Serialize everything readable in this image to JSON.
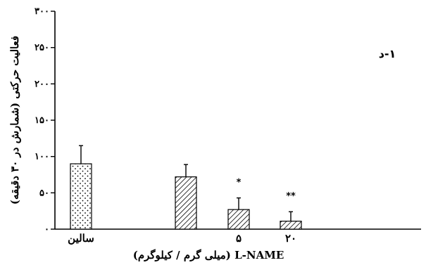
{
  "chart_data": {
    "type": "bar",
    "title": "",
    "panel_label": "۱-د",
    "ylabel": "فعالیت حرکتی (شمارش در ۳۰ دقیقه)",
    "xlabel": "L-NAME (میلی گرم / کیلوگرم)",
    "ylim": [
      0,
      300
    ],
    "yticks": [
      0,
      50,
      100,
      150,
      200,
      250,
      300
    ],
    "ytick_labels": [
      "۰",
      "۵۰",
      "۱۰۰",
      "۱۵۰",
      "۲۰۰",
      "۲۵۰",
      "۳۰۰"
    ],
    "categories": [
      "سالین",
      "۵",
      "۲۰"
    ],
    "bars": [
      {
        "category": "سالین",
        "value": 90,
        "error": 25,
        "pattern": "dots",
        "significance": ""
      },
      {
        "category": "",
        "value": 72,
        "error": 17,
        "pattern": "hatch",
        "significance": ""
      },
      {
        "category": "۵",
        "value": 27,
        "error": 16,
        "pattern": "hatch",
        "significance": "*"
      },
      {
        "category": "۲۰",
        "value": 11,
        "error": 13,
        "pattern": "hatch",
        "significance": "**"
      }
    ],
    "grid": false,
    "legend": "none"
  }
}
